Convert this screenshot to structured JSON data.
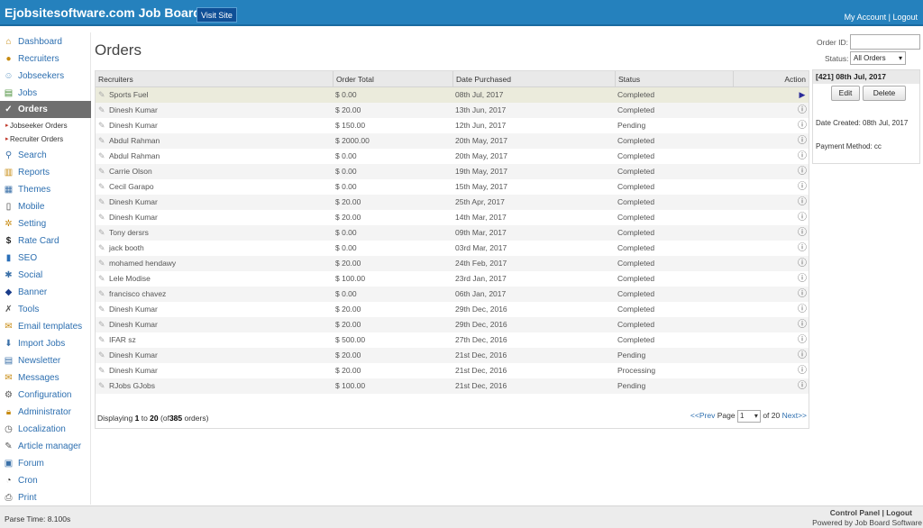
{
  "header": {
    "brand": "Ejobsitesoftware.com Job Board",
    "visit_site": "Visit Site",
    "my_account": "My Account",
    "separator": "|",
    "logout": "Logout"
  },
  "sidebar": {
    "items": [
      {
        "label": "Dashboard",
        "icon": "home-icon"
      },
      {
        "label": "Recruiters",
        "icon": "user-icon"
      },
      {
        "label": "Jobseekers",
        "icon": "users-icon"
      },
      {
        "label": "Jobs",
        "icon": "briefcase-icon"
      },
      {
        "label": "Orders",
        "icon": "cart-icon"
      },
      {
        "label": "Search",
        "icon": "search-icon"
      },
      {
        "label": "Reports",
        "icon": "book-icon"
      },
      {
        "label": "Themes",
        "icon": "layout-icon"
      },
      {
        "label": "Mobile",
        "icon": "mobile-icon"
      },
      {
        "label": "Setting",
        "icon": "gear-icon"
      },
      {
        "label": "Rate Card",
        "icon": "dollar-icon"
      },
      {
        "label": "SEO",
        "icon": "bar-chart-icon"
      },
      {
        "label": "Social",
        "icon": "share-icon"
      },
      {
        "label": "Banner",
        "icon": "banner-icon"
      },
      {
        "label": "Tools",
        "icon": "tools-icon"
      },
      {
        "label": "Email templates",
        "icon": "envelope-icon"
      },
      {
        "label": "Import Jobs",
        "icon": "download-icon"
      },
      {
        "label": "Newsletter",
        "icon": "newsletter-icon"
      },
      {
        "label": "Messages",
        "icon": "mail-icon"
      },
      {
        "label": "Configuration",
        "icon": "config-icon"
      },
      {
        "label": "Administrator",
        "icon": "admin-icon"
      },
      {
        "label": "Localization",
        "icon": "globe-icon"
      },
      {
        "label": "Article manager",
        "icon": "pencil-icon"
      },
      {
        "label": "Forum",
        "icon": "forum-icon"
      },
      {
        "label": "Cron",
        "icon": "clock-icon"
      },
      {
        "label": "Print",
        "icon": "printer-icon"
      }
    ],
    "sub_items": [
      "Jobseeker Orders",
      "Recruiter Orders"
    ]
  },
  "main": {
    "title": "Orders",
    "columns": [
      "Recruiters",
      "Order Total",
      "Date Purchased",
      "Status",
      "Action"
    ],
    "rows": [
      {
        "name": "Sports Fuel",
        "total": "$ 0.00",
        "date": "08th Jul, 2017",
        "status": "Completed"
      },
      {
        "name": "Dinesh Kumar",
        "total": "$ 20.00",
        "date": "13th Jun, 2017",
        "status": "Completed"
      },
      {
        "name": "Dinesh Kumar",
        "total": "$ 150.00",
        "date": "12th Jun, 2017",
        "status": "Pending"
      },
      {
        "name": "Abdul Rahman",
        "total": "$ 2000.00",
        "date": "20th May, 2017",
        "status": "Completed"
      },
      {
        "name": "Abdul Rahman",
        "total": "$ 0.00",
        "date": "20th May, 2017",
        "status": "Completed"
      },
      {
        "name": "Carrie Olson",
        "total": "$ 0.00",
        "date": "19th May, 2017",
        "status": "Completed"
      },
      {
        "name": "Cecil Garapo",
        "total": "$ 0.00",
        "date": "15th May, 2017",
        "status": "Completed"
      },
      {
        "name": "Dinesh Kumar",
        "total": "$ 20.00",
        "date": "25th Apr, 2017",
        "status": "Completed"
      },
      {
        "name": "Dinesh Kumar",
        "total": "$ 20.00",
        "date": "14th Mar, 2017",
        "status": "Completed"
      },
      {
        "name": "Tony dersrs",
        "total": "$ 0.00",
        "date": "09th Mar, 2017",
        "status": "Completed"
      },
      {
        "name": "jack booth",
        "total": "$ 0.00",
        "date": "03rd Mar, 2017",
        "status": "Completed"
      },
      {
        "name": "mohamed hendawy",
        "total": "$ 20.00",
        "date": "24th Feb, 2017",
        "status": "Completed"
      },
      {
        "name": "Lele Modise",
        "total": "$ 100.00",
        "date": "23rd Jan, 2017",
        "status": "Completed"
      },
      {
        "name": "francisco chavez",
        "total": "$ 0.00",
        "date": "06th Jan, 2017",
        "status": "Completed"
      },
      {
        "name": "Dinesh Kumar",
        "total": "$ 20.00",
        "date": "29th Dec, 2016",
        "status": "Completed"
      },
      {
        "name": "Dinesh Kumar",
        "total": "$ 20.00",
        "date": "29th Dec, 2016",
        "status": "Completed"
      },
      {
        "name": "IFAR sz",
        "total": "$ 500.00",
        "date": "27th Dec, 2016",
        "status": "Completed"
      },
      {
        "name": "Dinesh Kumar",
        "total": "$ 20.00",
        "date": "21st Dec, 2016",
        "status": "Pending"
      },
      {
        "name": "Dinesh Kumar",
        "total": "$ 20.00",
        "date": "21st Dec, 2016",
        "status": "Processing"
      },
      {
        "name": "RJobs GJobs",
        "total": "$ 100.00",
        "date": "21st Dec, 2016",
        "status": "Pending"
      }
    ],
    "displaying_prefix": "Displaying",
    "from": "1",
    "to_word": "to",
    "to": "20",
    "of_prefix": "(of",
    "total": "385",
    "of_suffix": "orders)",
    "prev": "<<Prev",
    "page_label": "Page",
    "page_value": "1",
    "of_pages": "of 20",
    "next": "Next>>"
  },
  "filter": {
    "order_id_label": "Order ID:",
    "status_label": "Status:",
    "status_value": "All Orders"
  },
  "detail": {
    "header": "[421]  08th Jul, 2017",
    "edit": "Edit",
    "delete": "Delete",
    "date_created": "Date Created: 08th Jul, 2017",
    "payment_method": "Payment Method: cc"
  },
  "footer": {
    "parse_time": "Parse Time: 8.100s",
    "control_panel": "Control Panel",
    "sep": "|",
    "logout": "Logout",
    "powered_by": "Powered by",
    "vendor": "Job Board Software"
  },
  "colors": {
    "header_bg": "#2581bd",
    "active_nav": "#6f6f6f",
    "link": "#2d6fb0"
  }
}
